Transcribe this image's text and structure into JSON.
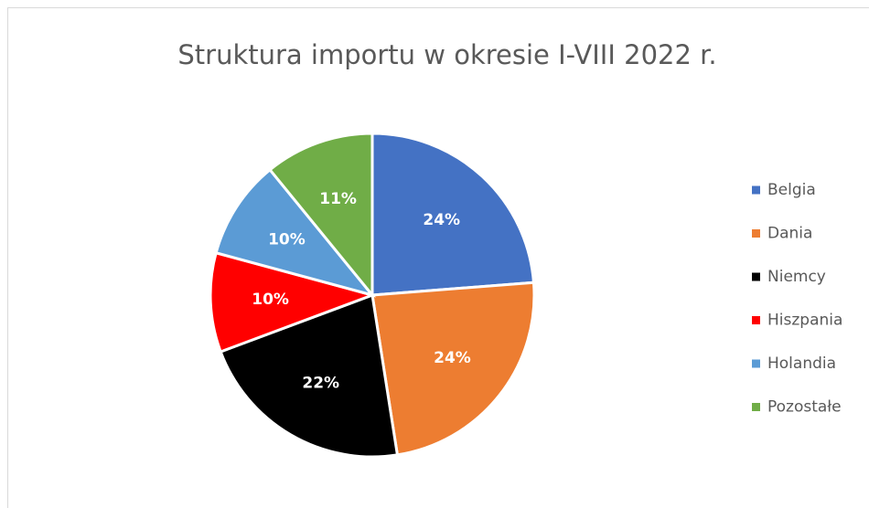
{
  "chart_data": {
    "type": "pie",
    "title": "Struktura importu w okresie I-VIII 2022 r.",
    "categories": [
      "Belgia",
      "Dania",
      "Niemcy",
      "Hiszpania",
      "Holandia",
      "Pozostałe"
    ],
    "values": [
      24,
      24,
      22,
      10,
      10,
      11
    ],
    "value_labels": [
      "24%",
      "24%",
      "22%",
      "10%",
      "10%",
      "11%"
    ],
    "colors": [
      "#4472c4",
      "#ed7d31",
      "#000000",
      "#ff0000",
      "#5b9bd5",
      "#70ad47"
    ],
    "legend": "right"
  }
}
